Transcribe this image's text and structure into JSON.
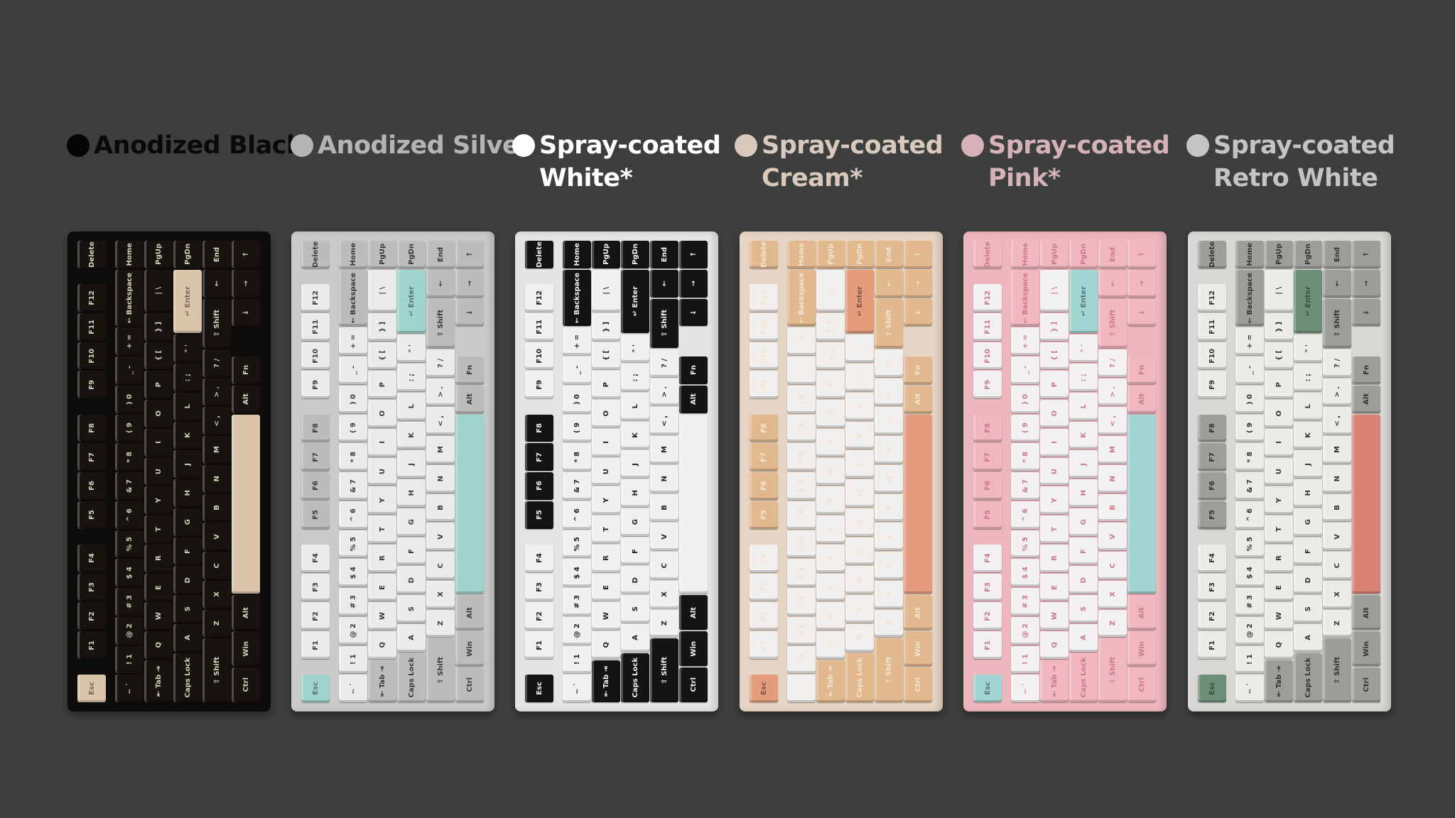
{
  "variants": [
    {
      "line1": "Anodized Black",
      "line2": "",
      "dot": "#050505",
      "text": "#0a0a0a",
      "colors": {
        "case": "#0f0d0c",
        "alpha": "#17130f",
        "mod": "#17130f",
        "accent": "#dac4aa",
        "enter": "#dac4aa",
        "space": "#dac4aa",
        "esc": "#dac4aa",
        "legend": "#d8cbb8",
        "darkLegend": "#4a3a2a"
      }
    },
    {
      "line1": "Anodized Silver",
      "line2": "",
      "dot": "#b4b4b4",
      "text": "#b4b4b4",
      "colors": {
        "case": "#cacaca",
        "alpha": "#ebebe9",
        "mod": "#bcbdbb",
        "accent": "#9fd4cc",
        "enter": "#9fd4cc",
        "space": "#9fd4cc",
        "esc": "#9fd4cc",
        "legend": "#3a3a3a",
        "darkLegend": "#3a3a3a"
      }
    },
    {
      "line1": "Spray-coated",
      "line2": "White*",
      "dot": "#ffffff",
      "text": "#ffffff",
      "colors": {
        "case": "#e4e4e4",
        "alpha": "#f0f0ee",
        "mod": "#141414",
        "accent": "#141414",
        "enter": "#141414",
        "space": "#f0f0ee",
        "esc": "#141414",
        "legend": "#222222",
        "darkLegend": "#f0f0f0"
      }
    },
    {
      "line1": "Spray-coated",
      "line2": "Cream*",
      "dot": "#d9c8bc",
      "text": "#d9c8bc",
      "colors": {
        "case": "#e6d4c4",
        "alpha": "#f0efed",
        "mod": "#e2b98e",
        "accent": "#e49c7d",
        "enter": "#e49c7d",
        "space": "#e49c7d",
        "esc": "#e49c7d",
        "legend": "#c9a47e",
        "darkLegend": "#f3e4d2"
      }
    },
    {
      "line1": "Spray-coated",
      "line2": "Pink*",
      "dot": "#d5b2b8",
      "text": "#d5b2b8",
      "colors": {
        "case": "#eeb6be",
        "alpha": "#f2f0f0",
        "mod": "#f0b7c1",
        "accent": "#a1d5d1",
        "enter": "#a1d5d1",
        "space": "#a1d5d1",
        "esc": "#a1d5d1",
        "legend": "#d996a3",
        "darkLegend": "#c97a88"
      }
    },
    {
      "line1": "Spray-coated",
      "line2": "Retro White",
      "dot": "#c4c4c2",
      "text": "#c4c4c2",
      "colors": {
        "case": "#d9d7d3",
        "alpha": "#ecebe8",
        "mod": "#9c9e9a",
        "accent": "#db8172",
        "enter": "#6d8f77",
        "space": "#db8172",
        "esc": "#6d8f77",
        "legend": "#333333",
        "darkLegend": "#e8e8e8"
      }
    }
  ],
  "keyboard": {
    "columns": [
      [
        "Esc",
        "F1",
        "F2",
        "F3",
        "F4",
        "F5",
        "F6",
        "F7",
        "F8",
        "F9",
        "F10",
        "F11",
        "F12",
        "Delete"
      ],
      [
        "~ `",
        "! 1",
        "@ 2",
        "# 3",
        "$ 4",
        "% 5",
        "^ 6",
        "& 7",
        "* 8",
        "( 9",
        ") 0",
        "_ -",
        "+ =",
        "← Backspace",
        "Home"
      ],
      [
        "⇤ Tab ⇥",
        "Q",
        "W",
        "E",
        "R",
        "T",
        "Y",
        "U",
        "I",
        "O",
        "P",
        "{ [",
        "} ]",
        "| \\",
        "PgUp"
      ],
      [
        "Caps Lock",
        "A",
        "S",
        "D",
        "F",
        "G",
        "H",
        "J",
        "K",
        "L",
        ": ;",
        "\" '",
        "↵ Enter",
        "PgDn"
      ],
      [
        "⇧ Shift",
        "Z",
        "X",
        "C",
        "V",
        "B",
        "N",
        "M",
        "< ,",
        "> .",
        "? /",
        "⇧ Shift",
        "←",
        "End"
      ],
      [
        "Ctrl",
        "Win",
        "Alt",
        "",
        "Alt",
        "Fn",
        "↓",
        "→",
        "↑"
      ]
    ]
  }
}
